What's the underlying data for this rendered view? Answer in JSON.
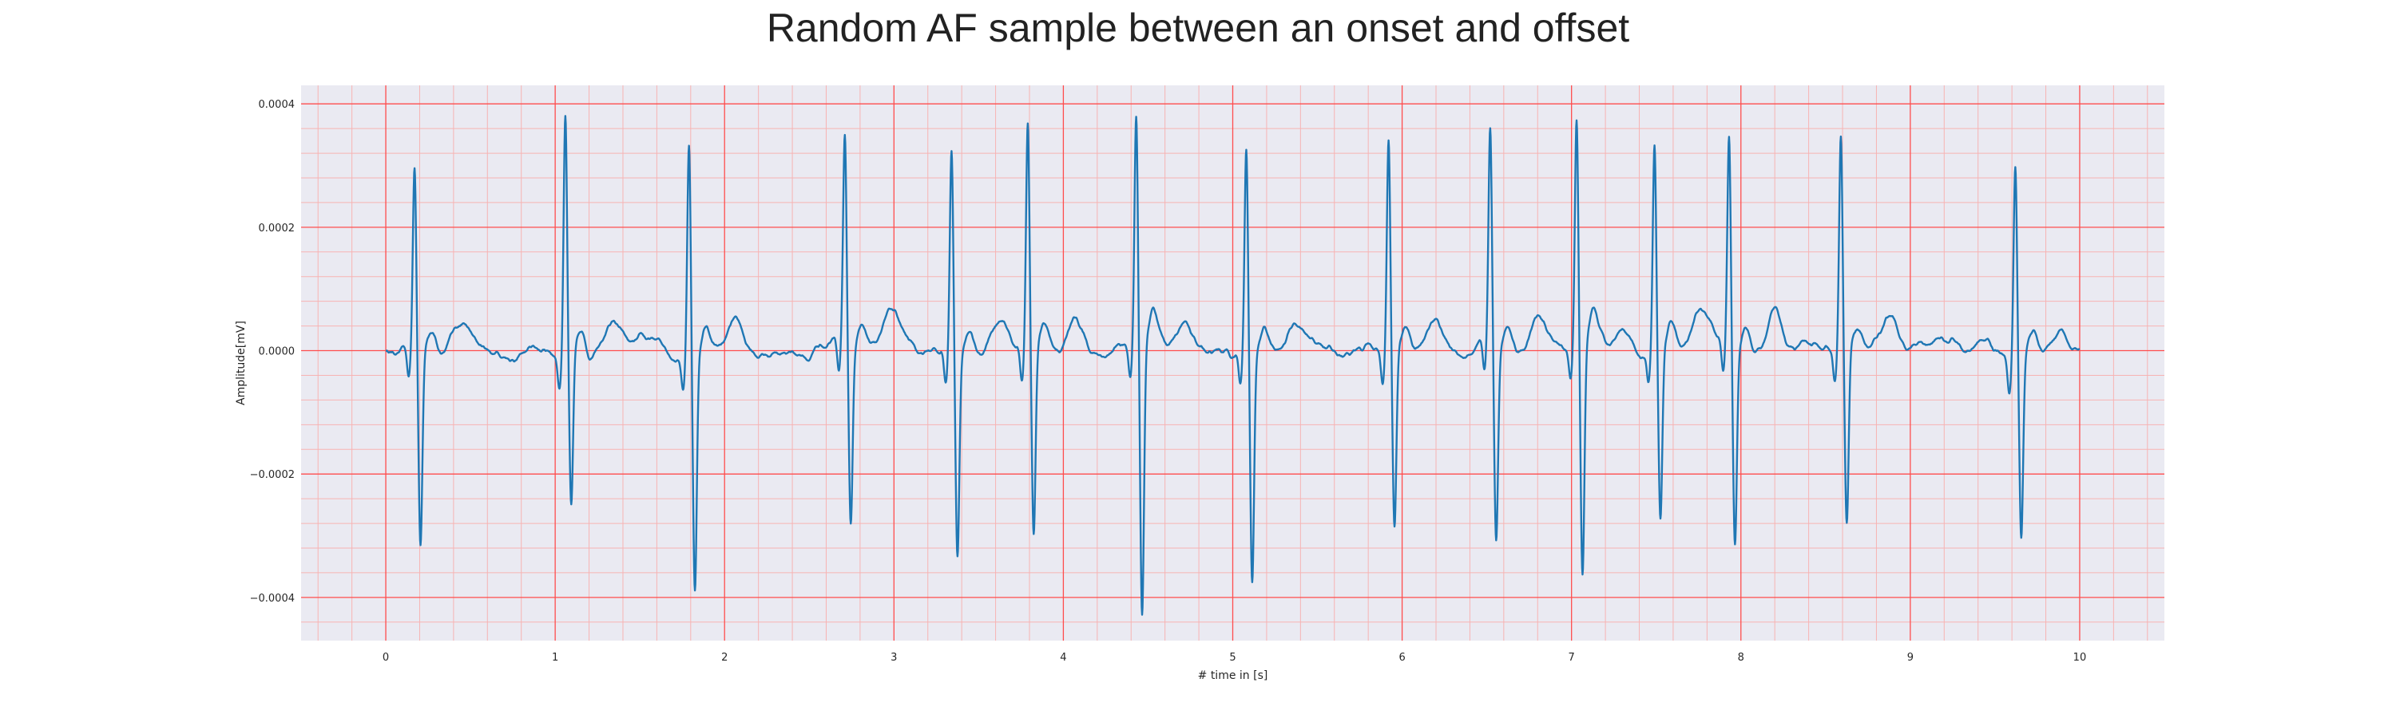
{
  "chart_data": {
    "type": "line",
    "title": "Random AF sample between an onset and offset",
    "xlabel": "# time in [s]",
    "ylabel": "Amplitude[mV]",
    "xlim": [
      -0.5,
      10.5
    ],
    "ylim": [
      -0.00047,
      0.00043
    ],
    "x_ticks": [
      0,
      1,
      2,
      3,
      4,
      5,
      6,
      7,
      8,
      9,
      10
    ],
    "x_tick_labels": [
      "0",
      "1",
      "2",
      "3",
      "4",
      "5",
      "6",
      "7",
      "8",
      "9",
      "10"
    ],
    "y_ticks": [
      0.0004,
      0.0002,
      0.0,
      -0.0002,
      -0.0004
    ],
    "y_tick_labels": [
      "0.0004",
      "0.0002",
      "0.0000",
      "−0.0002",
      "−0.0004"
    ],
    "grid": true,
    "grid_style": "major and minor, red ECG paper style",
    "background": "#eaeaf2",
    "series": [
      {
        "color": "#1f77b4",
        "x_start": 0,
        "x_end": 10,
        "beats": [
          {
            "t": 0.17,
            "r": 0.0003,
            "s": -0.000305
          },
          {
            "t": 1.06,
            "r": 0.00039,
            "s": -0.00026
          },
          {
            "t": 1.79,
            "r": 0.000345,
            "s": -0.00038
          },
          {
            "t": 2.71,
            "r": 0.00033,
            "s": -0.000295
          },
          {
            "t": 3.34,
            "r": 0.000335,
            "s": -0.00032
          },
          {
            "t": 3.79,
            "r": 0.000365,
            "s": -0.00031
          },
          {
            "t": 4.43,
            "r": 0.00038,
            "s": -0.000435
          },
          {
            "t": 5.08,
            "r": 0.000335,
            "s": -0.000365
          },
          {
            "t": 5.92,
            "r": 0.00035,
            "s": -0.00029
          },
          {
            "t": 6.52,
            "r": 0.00035,
            "s": -0.00031
          },
          {
            "t": 7.03,
            "r": 0.000365,
            "s": -0.000375
          },
          {
            "t": 7.49,
            "r": 0.000335,
            "s": -0.00027
          },
          {
            "t": 7.93,
            "r": 0.000345,
            "s": -0.00031
          },
          {
            "t": 8.59,
            "r": 0.00035,
            "s": -0.000285
          },
          {
            "t": 9.62,
            "r": 0.00031,
            "s": -0.000295
          }
        ],
        "baseline_amplitude": 4e-05
      }
    ]
  },
  "colors": {
    "line": "#1f77b4",
    "grid_major": "#ff4d4d",
    "grid_minor": "#f7b3b3",
    "plot_bg": "#eaeaf2"
  }
}
